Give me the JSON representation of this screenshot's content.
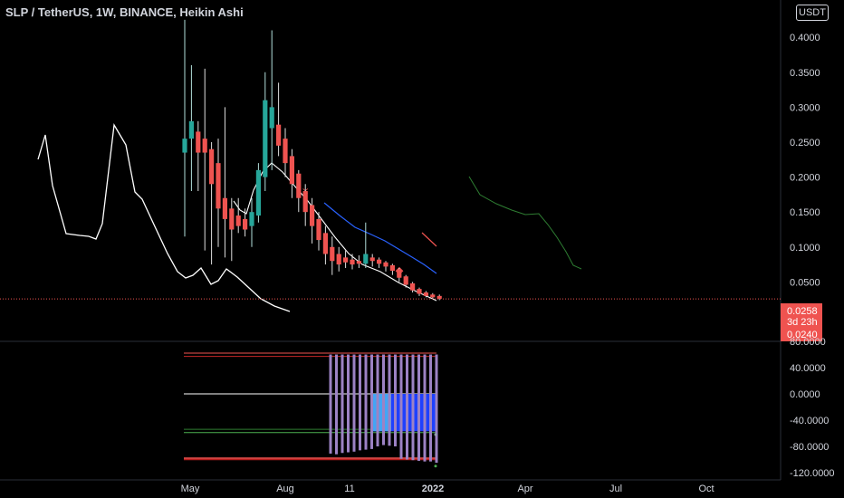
{
  "header": {
    "title": "SLP / TetherUS, 1W, BINANCE, Heikin Ashi",
    "currency": "USDT"
  },
  "price_tags": {
    "last": "0.0258",
    "countdown": "3d 23h",
    "low": "0.0240"
  },
  "colors": {
    "background": "#000000",
    "up": "#26a69a",
    "down": "#ef5350",
    "text": "#d1d4dc",
    "blue_line": "#2962ff",
    "purple": "#9c82c4"
  },
  "chart_data": [
    {
      "type": "candlestick",
      "title": "",
      "style": "Heikin Ashi",
      "ylim": [
        0.0,
        0.43
      ],
      "y_ticks": [
        "0.4000",
        "0.3500",
        "0.3000",
        "0.2500",
        "0.2000",
        "0.1500",
        "0.1000",
        "0.0500"
      ],
      "x_ticks": [
        "May",
        "Aug",
        "11",
        "2022",
        "Apr",
        "Jul",
        "Oct"
      ],
      "candles": [
        {
          "o": 0.235,
          "c": 0.255,
          "h": 0.425,
          "l": 0.115
        },
        {
          "o": 0.255,
          "c": 0.28,
          "h": 0.36,
          "l": 0.18
        },
        {
          "o": 0.265,
          "c": 0.235,
          "h": 0.28,
          "l": 0.18
        },
        {
          "o": 0.255,
          "c": 0.235,
          "h": 0.355,
          "l": 0.095
        },
        {
          "o": 0.24,
          "c": 0.19,
          "h": 0.25,
          "l": 0.075
        },
        {
          "o": 0.22,
          "c": 0.155,
          "h": 0.255,
          "l": 0.1
        },
        {
          "o": 0.17,
          "c": 0.14,
          "h": 0.3,
          "l": 0.085
        },
        {
          "o": 0.155,
          "c": 0.125,
          "h": 0.17,
          "l": 0.08
        },
        {
          "o": 0.145,
          "c": 0.13,
          "h": 0.17,
          "l": 0.12
        },
        {
          "o": 0.14,
          "c": 0.125,
          "h": 0.155,
          "l": 0.115
        },
        {
          "o": 0.13,
          "c": 0.15,
          "h": 0.17,
          "l": 0.1
        },
        {
          "o": 0.145,
          "c": 0.21,
          "h": 0.22,
          "l": 0.135
        },
        {
          "o": 0.2,
          "c": 0.31,
          "h": 0.35,
          "l": 0.18
        },
        {
          "o": 0.27,
          "c": 0.3,
          "h": 0.41,
          "l": 0.21
        },
        {
          "o": 0.275,
          "c": 0.245,
          "h": 0.335,
          "l": 0.23
        },
        {
          "o": 0.255,
          "c": 0.22,
          "h": 0.27,
          "l": 0.2
        },
        {
          "o": 0.23,
          "c": 0.19,
          "h": 0.24,
          "l": 0.17
        },
        {
          "o": 0.205,
          "c": 0.17,
          "h": 0.21,
          "l": 0.15
        },
        {
          "o": 0.18,
          "c": 0.15,
          "h": 0.19,
          "l": 0.13
        },
        {
          "o": 0.16,
          "c": 0.13,
          "h": 0.17,
          "l": 0.105
        },
        {
          "o": 0.14,
          "c": 0.11,
          "h": 0.15,
          "l": 0.095
        },
        {
          "o": 0.12,
          "c": 0.09,
          "h": 0.13,
          "l": 0.075
        },
        {
          "o": 0.1,
          "c": 0.08,
          "h": 0.115,
          "l": 0.06
        },
        {
          "o": 0.09,
          "c": 0.075,
          "h": 0.1,
          "l": 0.065
        },
        {
          "o": 0.085,
          "c": 0.078,
          "h": 0.095,
          "l": 0.07
        },
        {
          "o": 0.082,
          "c": 0.075,
          "h": 0.09,
          "l": 0.068
        },
        {
          "o": 0.08,
          "c": 0.076,
          "h": 0.088,
          "l": 0.07
        },
        {
          "o": 0.076,
          "c": 0.09,
          "h": 0.135,
          "l": 0.07
        },
        {
          "o": 0.085,
          "c": 0.08,
          "h": 0.09,
          "l": 0.072
        },
        {
          "o": 0.082,
          "c": 0.076,
          "h": 0.085,
          "l": 0.07
        },
        {
          "o": 0.078,
          "c": 0.072,
          "h": 0.08,
          "l": 0.065
        },
        {
          "o": 0.074,
          "c": 0.066,
          "h": 0.076,
          "l": 0.06
        },
        {
          "o": 0.068,
          "c": 0.056,
          "h": 0.07,
          "l": 0.05
        },
        {
          "o": 0.058,
          "c": 0.046,
          "h": 0.06,
          "l": 0.042
        },
        {
          "o": 0.048,
          "c": 0.038,
          "h": 0.05,
          "l": 0.035
        },
        {
          "o": 0.04,
          "c": 0.033,
          "h": 0.042,
          "l": 0.03
        },
        {
          "o": 0.035,
          "c": 0.03,
          "h": 0.037,
          "l": 0.028
        },
        {
          "o": 0.032,
          "c": 0.028,
          "h": 0.034,
          "l": 0.026
        },
        {
          "o": 0.03,
          "c": 0.026,
          "h": 0.032,
          "l": 0.024
        }
      ],
      "last_price": 0.0258,
      "grid": false
    },
    {
      "type": "bar",
      "title": "",
      "ylim": [
        -120,
        80
      ],
      "y_ticks": [
        "80.0000",
        "40.0000",
        "0.0000",
        "-40.0000",
        "-80.0000",
        "-120.0000"
      ],
      "levels": [
        62,
        57,
        0,
        -54,
        -59,
        -98,
        -100
      ],
      "histogram": [
        {
          "top": 60,
          "bottom": -91
        },
        {
          "top": 60,
          "bottom": -92
        },
        {
          "top": 60,
          "bottom": -90
        },
        {
          "top": 60,
          "bottom": -89
        },
        {
          "top": 60,
          "bottom": -88
        },
        {
          "top": 60,
          "bottom": -86
        },
        {
          "top": 60,
          "bottom": -85
        },
        {
          "top": 60,
          "bottom": -84
        },
        {
          "top": 60,
          "bottom": -80
        },
        {
          "top": 60,
          "bottom": -78
        },
        {
          "top": 60,
          "bottom": -79
        },
        {
          "top": 60,
          "bottom": -80
        },
        {
          "top": 60,
          "bottom": -99
        },
        {
          "top": 60,
          "bottom": -100
        },
        {
          "top": 60,
          "bottom": -101
        },
        {
          "top": 60,
          "bottom": -102
        },
        {
          "top": 60,
          "bottom": -103
        },
        {
          "top": 60,
          "bottom": -103
        },
        {
          "top": 60,
          "bottom": -105
        }
      ],
      "grid": false
    }
  ]
}
